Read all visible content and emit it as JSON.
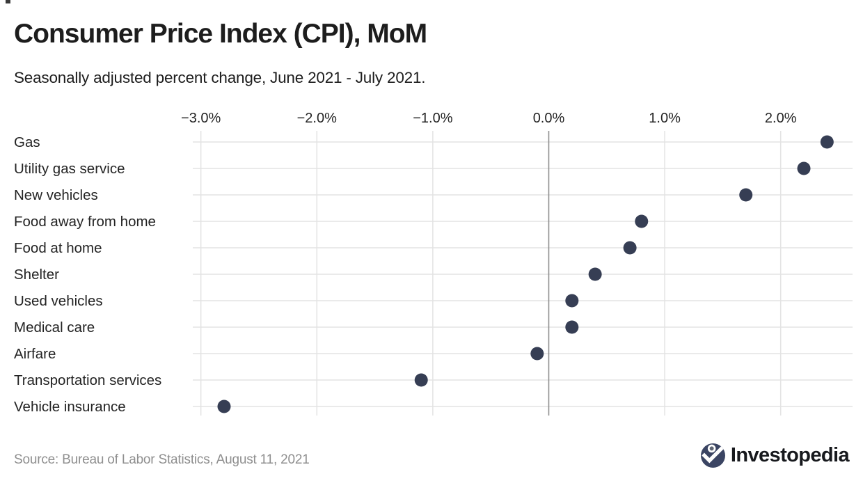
{
  "page": {
    "title": "Consumer Price Index (CPI), MoM",
    "subtitle": "Seasonally adjusted percent change, June 2021 - July 2021."
  },
  "chart_data": {
    "type": "scatter",
    "subtype": "horizontal-dot-plot",
    "title": "Consumer Price Index (CPI), MoM",
    "subtitle": "Seasonally adjusted percent change, June 2021 - July 2021.",
    "categories": [
      "Gas",
      "Utility gas service",
      "New vehicles",
      "Food away from home",
      "Food at home",
      "Shelter",
      "Used vehicles",
      "Medical care",
      "Airfare",
      "Transportation services",
      "Vehicle insurance"
    ],
    "values": [
      2.4,
      2.2,
      1.7,
      0.8,
      0.7,
      0.4,
      0.2,
      0.2,
      -0.1,
      -1.1,
      -2.8
    ],
    "unit": "percent",
    "x_ticks": [
      -3.0,
      -2.0,
      -1.0,
      0.0,
      1.0,
      2.0
    ],
    "x_tick_labels": [
      "−3.0%",
      "−2.0%",
      "−1.0%",
      "0.0%",
      "1.0%",
      "2.0%"
    ],
    "xlim": [
      -3.07,
      2.62
    ],
    "grid": true,
    "zero_line": true,
    "legend": "none"
  },
  "footer": {
    "source": "Source: Bureau of Labor Statistics, August 11, 2021",
    "brand": "Investopedia"
  },
  "colors": {
    "dot": "#363e54",
    "grid": "#e3e3e3",
    "zero_line": "#8f8f8f",
    "text": "#1d1d1d",
    "label_text": "#242424",
    "source_text": "#8f8f8f",
    "logo_circle": "#3b4563",
    "logo_dot": "#5f6674",
    "logo_text": "#17191d"
  }
}
